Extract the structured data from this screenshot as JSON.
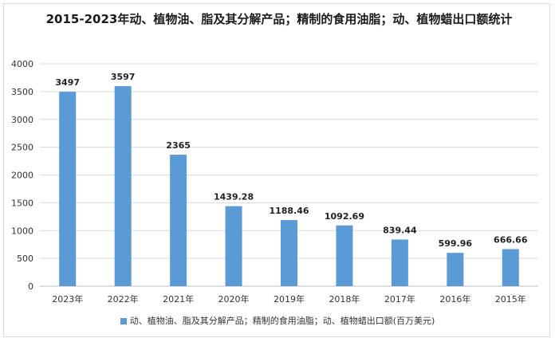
{
  "colors": {
    "bar": "#5b9bd5",
    "axis_text": "#333333",
    "grid": "#d9d9d9"
  },
  "chart_data": {
    "type": "bar",
    "title": "2015-2023年动、植物油、脂及其分解产品；精制的食用油脂；动、植物蜡出口额统计",
    "categories": [
      "2023年",
      "2022年",
      "2021年",
      "2020年",
      "2019年",
      "2018年",
      "2017年",
      "2016年",
      "2015年"
    ],
    "series": [
      {
        "name": "动、植物油、脂及其分解产品；精制的食用油脂；动、植物蜡出口额(百万美元)",
        "values": [
          3497,
          3597,
          2365,
          1439.28,
          1188.46,
          1092.69,
          839.44,
          599.96,
          666.66
        ],
        "labels": [
          "3497",
          "3597",
          "2365",
          "1439.28",
          "1188.46",
          "1092.69",
          "839.44",
          "599.96",
          "666.66"
        ]
      }
    ],
    "yticks": [
      "0",
      "500",
      "1000",
      "1500",
      "2000",
      "2500",
      "3000",
      "3500",
      "4000"
    ],
    "ylim": [
      0,
      4000
    ],
    "xlabel": "",
    "ylabel": "",
    "grid": true,
    "legend_position": "bottom"
  }
}
